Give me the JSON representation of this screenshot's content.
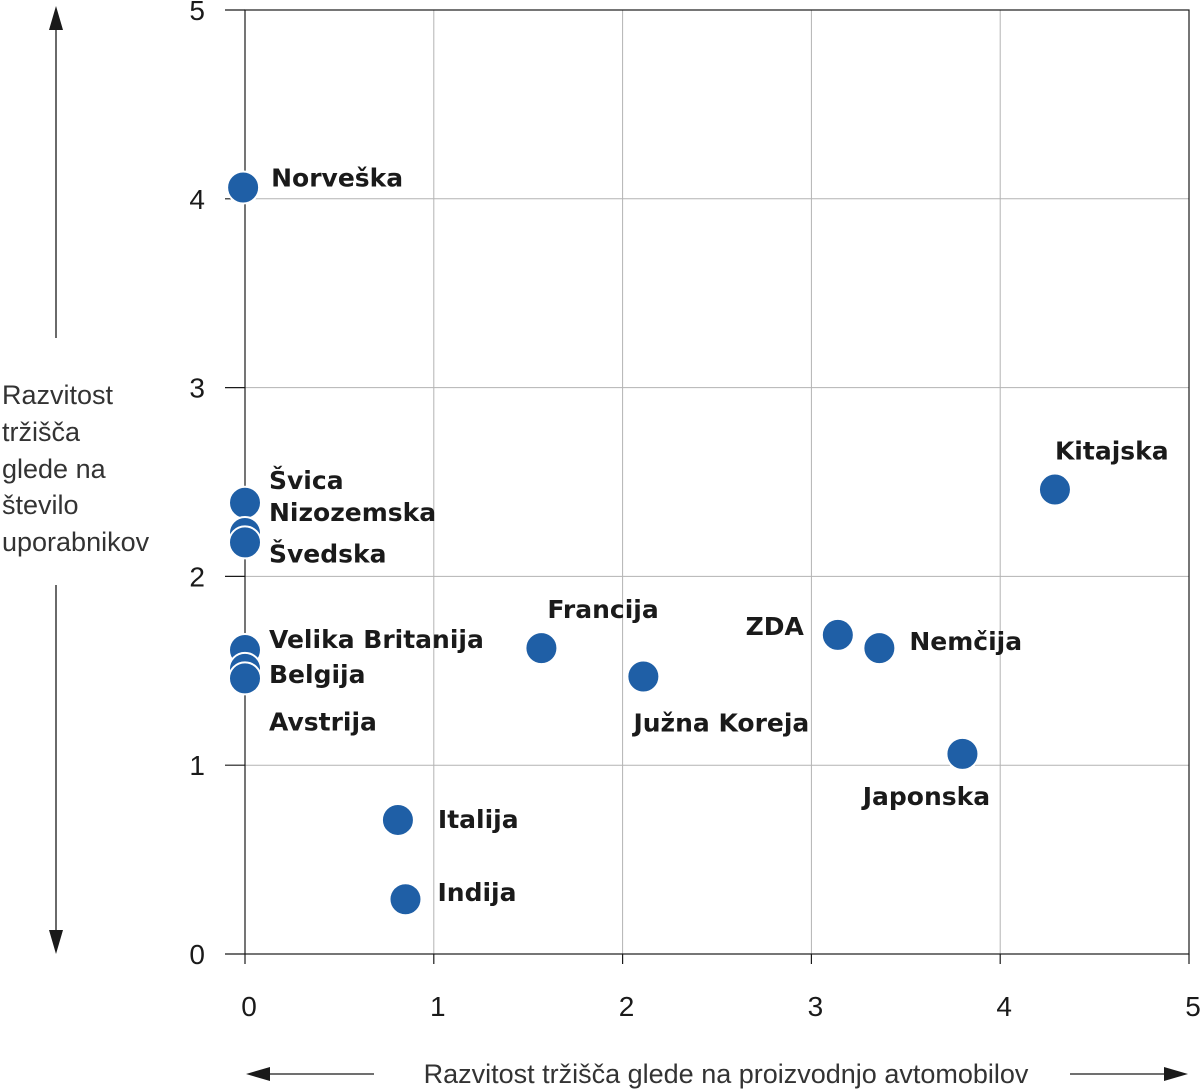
{
  "chart_data": {
    "type": "scatter",
    "xlabel": "Razvitost tržišča glede na proizvodnjo avtomobilov",
    "ylabel_lines": [
      "Razvitost",
      "tržišča",
      "glede na",
      "število",
      "uporabnikov"
    ],
    "xlim": [
      0,
      5
    ],
    "ylim": [
      0,
      5
    ],
    "xticks": [
      "0",
      "1",
      "2",
      "3",
      "4",
      "5"
    ],
    "yticks": [
      "0",
      "1",
      "2",
      "3",
      "4",
      "5"
    ],
    "grid": true,
    "points": [
      {
        "label": "Norveška",
        "x": -0.01,
        "y": 4.06,
        "label_pos": "right"
      },
      {
        "label": "Švica",
        "x": 0.0,
        "y": 2.39,
        "label_pos": "upper-right"
      },
      {
        "label": "Nizozemska",
        "x": 0.0,
        "y": 2.23,
        "label_pos": "right"
      },
      {
        "label": "Švedska",
        "x": 0.0,
        "y": 2.18,
        "label_pos": "lower-right"
      },
      {
        "label": "Velika Britanija",
        "x": 0.0,
        "y": 1.61,
        "label_pos": "right"
      },
      {
        "label": "Belgija",
        "x": 0.0,
        "y": 1.51,
        "label_pos": "right"
      },
      {
        "label": "Avstrija",
        "x": 0.0,
        "y": 1.46,
        "label_pos": "below-right"
      },
      {
        "label": "Italija",
        "x": 0.81,
        "y": 0.71,
        "label_pos": "right"
      },
      {
        "label": "Indija",
        "x": 0.85,
        "y": 0.29,
        "label_pos": "right"
      },
      {
        "label": "Francija",
        "x": 1.57,
        "y": 1.62,
        "label_pos": "above"
      },
      {
        "label": "Južna Koreja",
        "x": 2.11,
        "y": 1.47,
        "label_pos": "below"
      },
      {
        "label": "ZDA",
        "x": 3.14,
        "y": 1.69,
        "label_pos": "left"
      },
      {
        "label": "Nemčija",
        "x": 3.36,
        "y": 1.62,
        "label_pos": "right"
      },
      {
        "label": "Japonska",
        "x": 3.8,
        "y": 1.06,
        "label_pos": "below"
      },
      {
        "label": "Kitajska",
        "x": 4.29,
        "y": 2.46,
        "label_pos": "above"
      }
    ],
    "point_color": "#1f5fa6"
  }
}
